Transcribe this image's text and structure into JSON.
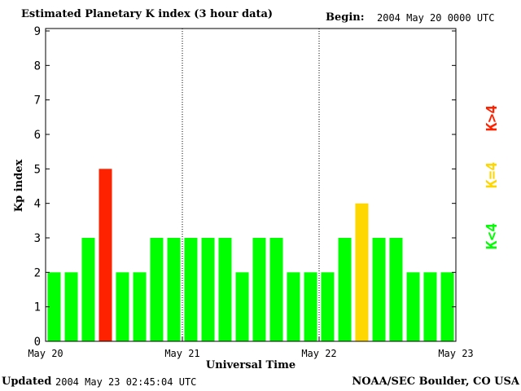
{
  "header": {
    "title": "Estimated Planetary K index (3 hour data)",
    "begin_label": "Begin:",
    "begin_value": "2004 May 20 0000 UTC"
  },
  "footer": {
    "updated_label": "Updated",
    "updated_value": "2004 May 23 02:45:04 UTC",
    "credit": "NOAA/SEC Boulder, CO USA"
  },
  "colors": {
    "low": "#00ff00",
    "moderate": "#ffd700",
    "high": "#ff2200",
    "axis": "#000000"
  },
  "chart_data": {
    "type": "bar",
    "title": "Estimated Planetary K index (3 hour data)",
    "xlabel": "Universal Time",
    "ylabel": "Kp index",
    "ylim": [
      0,
      9
    ],
    "yticks": [
      "0",
      "1",
      "2",
      "3",
      "4",
      "5",
      "6",
      "7",
      "8",
      "9"
    ],
    "x_tick_labels": [
      "May 20",
      "May 21",
      "May 22",
      "May 23"
    ],
    "interval_hours": 3,
    "values": [
      2,
      2,
      3,
      5,
      2,
      2,
      3,
      3,
      3,
      3,
      3,
      2,
      3,
      3,
      2,
      2,
      2,
      3,
      4,
      3,
      3,
      2,
      2,
      2
    ],
    "day_separators": "dotted vertical lines at day boundaries",
    "legend": [
      {
        "label": "K<4",
        "color": "#00ff00"
      },
      {
        "label": "K=4",
        "color": "#ffd700"
      },
      {
        "label": "K>4",
        "color": "#ff2200"
      }
    ],
    "legend_placement": "right, vertical"
  }
}
